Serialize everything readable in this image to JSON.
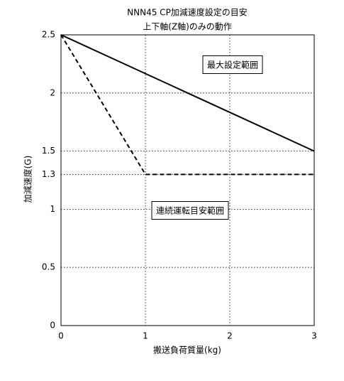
{
  "chart_data": {
    "type": "line",
    "title": "NNN45 CP加減速度設定の目安",
    "subtitle": "上下軸(Z軸)のみの動作",
    "x_label": "搬送負荷質量(kg)",
    "y_label": "加減速度(G)",
    "xlim": [
      0,
      3
    ],
    "xticks": [
      0,
      1,
      2,
      3
    ],
    "ylim": [
      0,
      2.5
    ],
    "yticks": [
      0,
      0.5,
      1,
      1.3,
      1.5,
      2,
      2.5
    ],
    "grid": true,
    "series": [
      {
        "x": [
          0,
          3
        ],
        "values": [
          2.5,
          1.5
        ],
        "color": "#000000",
        "line_style": "solid"
      },
      {
        "x": [
          0,
          1,
          3
        ],
        "values": [
          2.5,
          1.3,
          1.3
        ],
        "color": "#000000",
        "line_style": "dashed"
      }
    ],
    "annotations": [
      "最大設定範囲",
      "連続運転目安範囲"
    ]
  }
}
